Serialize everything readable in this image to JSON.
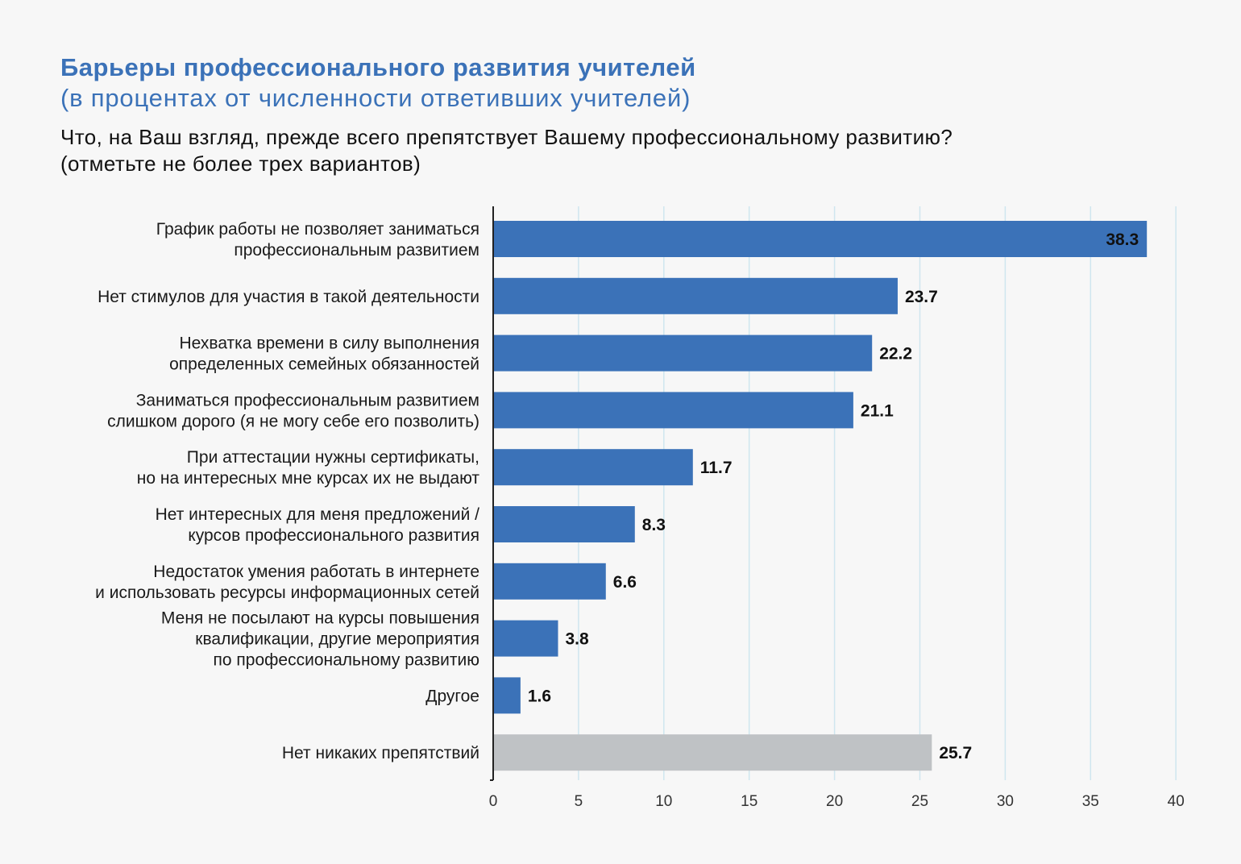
{
  "title": "Барьеры профессионального развития учителей",
  "subtitle": "(в процентах от численности ответивших учителей)",
  "question": "Что, на Ваш взгляд, прежде всего препятствует Вашему профессиональному развитию? (отметьте не более трех вариантов)",
  "colors": {
    "bar": "#3b72b8",
    "bar_alt": "#bfc2c5",
    "grid": "#cfe6ef",
    "axis": "#222222",
    "value_inside": "#ffffff",
    "value_outside": "#111111"
  },
  "chart_data": {
    "type": "bar",
    "orientation": "horizontal",
    "categories": [
      [
        "График работы не позволяет заниматься",
        "профессиональным развитием"
      ],
      [
        "Нет стимулов для участия в такой деятельности"
      ],
      [
        "Нехватка времени в силу выполнения",
        "определенных семейных обязанностей"
      ],
      [
        "Заниматься профессиональным развитием",
        "слишком дорого (я не могу себе его позволить)"
      ],
      [
        "При аттестации нужны сертификаты,",
        "но на интересных мне курсах их не выдают"
      ],
      [
        "Нет интересных для меня предложений /",
        "курсов профессионального развития"
      ],
      [
        "Недостаток умения работать в интернете",
        "и использовать ресурсы информационных сетей"
      ],
      [
        "Меня не посылают на курсы повышения",
        "квалификации, другие мероприятия",
        "по профессиональному развитию"
      ],
      [
        "Другое"
      ],
      [
        "Нет никаких препятствий"
      ]
    ],
    "values": [
      38.3,
      23.7,
      22.2,
      21.1,
      11.7,
      8.3,
      6.6,
      3.8,
      1.6,
      25.7
    ],
    "value_labels": [
      "38.3",
      "23.7",
      "22.2",
      "21.1",
      "11.7",
      "8.3",
      "6.6",
      "3.8",
      "1.6",
      "25.7"
    ],
    "highlight": [
      false,
      false,
      false,
      false,
      false,
      false,
      false,
      false,
      false,
      true
    ],
    "xticks": [
      0,
      5,
      10,
      15,
      20,
      25,
      30,
      35,
      40
    ],
    "xlim": [
      0,
      40
    ],
    "grid": true
  }
}
